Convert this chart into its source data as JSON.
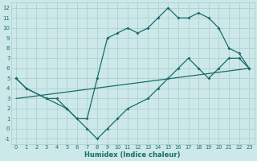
{
  "xlabel": "Humidex (Indice chaleur)",
  "xlim": [
    -0.5,
    23.5
  ],
  "ylim": [
    -1.5,
    12.5
  ],
  "xticks": [
    0,
    1,
    2,
    3,
    4,
    5,
    6,
    7,
    8,
    9,
    10,
    11,
    12,
    13,
    14,
    15,
    16,
    17,
    18,
    19,
    20,
    21,
    22,
    23
  ],
  "yticks": [
    -1,
    0,
    1,
    2,
    3,
    4,
    5,
    6,
    7,
    8,
    9,
    10,
    11,
    12
  ],
  "bg_color": "#cce8e8",
  "grid_color": "#aacccc",
  "line_color": "#1a6b6b",
  "line1_x": [
    0,
    1,
    3,
    4,
    5,
    6,
    7,
    8,
    9,
    10,
    11,
    12,
    13,
    14,
    15,
    16,
    17,
    18,
    19,
    20,
    21,
    22,
    23
  ],
  "line1_y": [
    5,
    4,
    3,
    3,
    2,
    1,
    1,
    5,
    9,
    9.5,
    10,
    9.5,
    10,
    11,
    12,
    11,
    11,
    11.5,
    11,
    10,
    8,
    7.5,
    6
  ],
  "line2_x": [
    0,
    1,
    3,
    5,
    6,
    7,
    8,
    9,
    10,
    11,
    13,
    14,
    15,
    16,
    17,
    18,
    19,
    20,
    21,
    22,
    23
  ],
  "line2_y": [
    5,
    4,
    3,
    2,
    1,
    0,
    -1,
    0,
    1,
    2,
    3,
    4,
    5,
    6,
    7,
    6,
    5,
    6,
    7,
    7,
    6
  ],
  "line3_x": [
    0,
    23
  ],
  "line3_y": [
    3,
    6
  ]
}
